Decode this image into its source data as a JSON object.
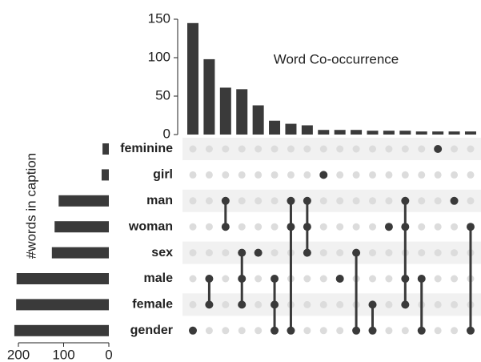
{
  "chart_data": {
    "type": "upset",
    "title": "Word Co-occurrence",
    "set_axis_label": "#words in caption",
    "color": "#3a3a3a",
    "inactive_color": "#dcdcdc",
    "band_color": "#f1f1f1",
    "ylim": [
      0,
      150
    ],
    "yticks": [
      0,
      50,
      100,
      150
    ],
    "xlim": [
      0,
      200
    ],
    "xticks": [
      200,
      100,
      0
    ],
    "sets": [
      {
        "name": "feminine",
        "size": 14
      },
      {
        "name": "girl",
        "size": 16
      },
      {
        "name": "man",
        "size": 111
      },
      {
        "name": "woman",
        "size": 120
      },
      {
        "name": "sex",
        "size": 126
      },
      {
        "name": "male",
        "size": 204
      },
      {
        "name": "female",
        "size": 205
      },
      {
        "name": "gender",
        "size": 209
      }
    ],
    "intersections": [
      {
        "value": 145,
        "sets": [
          7
        ]
      },
      {
        "value": 98,
        "sets": [
          5,
          6
        ]
      },
      {
        "value": 61,
        "sets": [
          2,
          3
        ]
      },
      {
        "value": 59,
        "sets": [
          4,
          5,
          6
        ]
      },
      {
        "value": 38,
        "sets": [
          4
        ]
      },
      {
        "value": 18,
        "sets": [
          5,
          6,
          7
        ]
      },
      {
        "value": 14,
        "sets": [
          2,
          3,
          7
        ]
      },
      {
        "value": 12,
        "sets": [
          2,
          3,
          4
        ]
      },
      {
        "value": 6,
        "sets": [
          1
        ]
      },
      {
        "value": 6,
        "sets": [
          5
        ]
      },
      {
        "value": 6,
        "sets": [
          4,
          7
        ]
      },
      {
        "value": 5,
        "sets": [
          6,
          7
        ]
      },
      {
        "value": 5,
        "sets": [
          3
        ]
      },
      {
        "value": 5,
        "sets": [
          2,
          3,
          5,
          6
        ]
      },
      {
        "value": 4,
        "sets": [
          5,
          7
        ]
      },
      {
        "value": 4,
        "sets": [
          0
        ]
      },
      {
        "value": 4,
        "sets": [
          2
        ]
      },
      {
        "value": 4,
        "sets": [
          3,
          7
        ]
      }
    ]
  }
}
